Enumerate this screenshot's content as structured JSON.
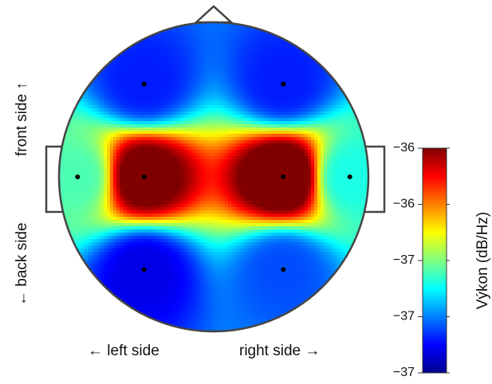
{
  "chart_data": {
    "type": "heatmap",
    "subtype": "eeg-topographic-map",
    "colormap": "jet",
    "colorbar": {
      "label": "Výkon (dB/Hz)",
      "range": [
        -37,
        -36
      ],
      "tick_labels": [
        "−36",
        "−36",
        "−37",
        "−37",
        "−37"
      ],
      "placement": "right"
    },
    "orientation_labels": {
      "front": "front side ↑",
      "back": "← back side",
      "left": "← left side",
      "right": "right side →"
    },
    "electrodes": [
      {
        "x": -0.45,
        "y": 0.6,
        "value": -36.85
      },
      {
        "x": 0.45,
        "y": 0.6,
        "value": -36.85
      },
      {
        "x": -0.88,
        "y": 0.0,
        "value": -36.55
      },
      {
        "x": -0.45,
        "y": 0.0,
        "value": -35.95
      },
      {
        "x": 0.45,
        "y": 0.0,
        "value": -35.9
      },
      {
        "x": 0.88,
        "y": 0.0,
        "value": -36.6
      },
      {
        "x": -0.45,
        "y": -0.6,
        "value": -36.9
      },
      {
        "x": 0.45,
        "y": -0.6,
        "value": -36.8
      }
    ],
    "colors": {
      "outline": "#444444",
      "electrode": "#000000"
    }
  }
}
